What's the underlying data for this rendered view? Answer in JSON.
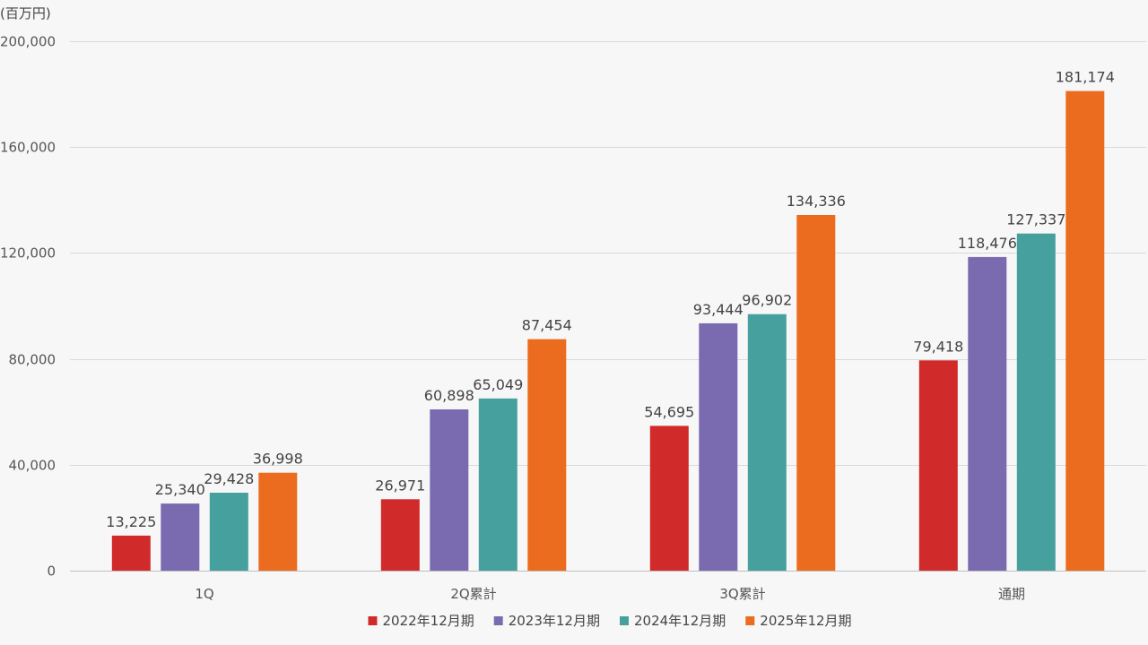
{
  "chart_data": {
    "type": "bar",
    "title": "",
    "unit_label": "(百万円)",
    "xlabel": "",
    "ylabel": "",
    "ylim": [
      0,
      200000
    ],
    "yticks": [
      0,
      40000,
      80000,
      120000,
      160000,
      200000
    ],
    "ytick_labels": [
      "0",
      "40,000",
      "80,000",
      "120,000",
      "160,000",
      "200,000"
    ],
    "grid": true,
    "legend_position": "bottom",
    "categories": [
      "1Q",
      "2Q累計",
      "3Q累計",
      "通期"
    ],
    "series": [
      {
        "name": "2022年12月期",
        "color": "#d12a2a",
        "values": [
          13225,
          26971,
          54695,
          79418
        ],
        "labels": [
          "13,225",
          "26,971",
          "54,695",
          "79,418"
        ]
      },
      {
        "name": "2023年12月期",
        "color": "#7a6bb0",
        "values": [
          25340,
          60898,
          93444,
          118476
        ],
        "labels": [
          "25,340",
          "60,898",
          "93,444",
          "118,476"
        ]
      },
      {
        "name": "2024年12月期",
        "color": "#46a09e",
        "values": [
          29428,
          65049,
          96902,
          127337
        ],
        "labels": [
          "29,428",
          "65,049",
          "96,902",
          "127,337"
        ]
      },
      {
        "name": "2025年12月期",
        "color": "#ec6c1f",
        "values": [
          36998,
          87454,
          134336,
          181174
        ],
        "labels": [
          "36,998",
          "87,454",
          "134,336",
          "181,174"
        ]
      }
    ]
  }
}
